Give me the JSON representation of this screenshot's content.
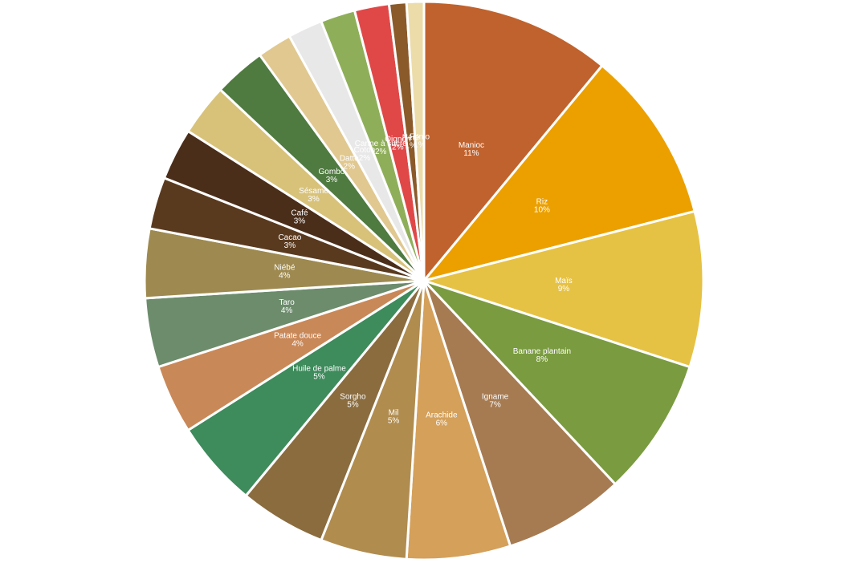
{
  "chart_data": {
    "type": "pie",
    "categories": [
      "Manioc",
      "Riz",
      "Maïs",
      "Banane plantain",
      "Igname",
      "Arachide",
      "Mil",
      "Sorgho",
      "Huile de palme",
      "Patate douce",
      "Taro",
      "Niébé",
      "Cacao",
      "Café",
      "Sésame",
      "Gombo",
      "Datte",
      "Coton",
      "Canne à sucre",
      "Oignon",
      "Néré",
      "Fonio"
    ],
    "values": [
      11,
      10,
      9,
      8,
      7,
      6,
      5,
      5,
      5,
      4,
      4,
      4,
      3,
      3,
      3,
      3,
      2,
      2,
      2,
      2,
      1,
      1
    ],
    "value_labels": [
      "11%",
      "10%",
      "9%",
      "8%",
      "7%",
      "6%",
      "5%",
      "5%",
      "5%",
      "4%",
      "4%",
      "4%",
      "3%",
      "3%",
      "3%",
      "3%",
      "2%",
      "2%",
      "2%",
      "2%",
      "1%",
      "1%"
    ],
    "colors": [
      "#c0622d",
      "#eca000",
      "#e6c244",
      "#7a9b40",
      "#a67b52",
      "#d4a05a",
      "#b08c4f",
      "#8a6c3f",
      "#3e8b5c",
      "#c98858",
      "#6c8c6c",
      "#9e8a50",
      "#5a3a1f",
      "#4a2e1a",
      "#d8c27a",
      "#4f7a40",
      "#e0c890",
      "#e8e8e8",
      "#8fae5a",
      "#e04848",
      "#8b5a2b",
      "#ecdcaa"
    ]
  }
}
